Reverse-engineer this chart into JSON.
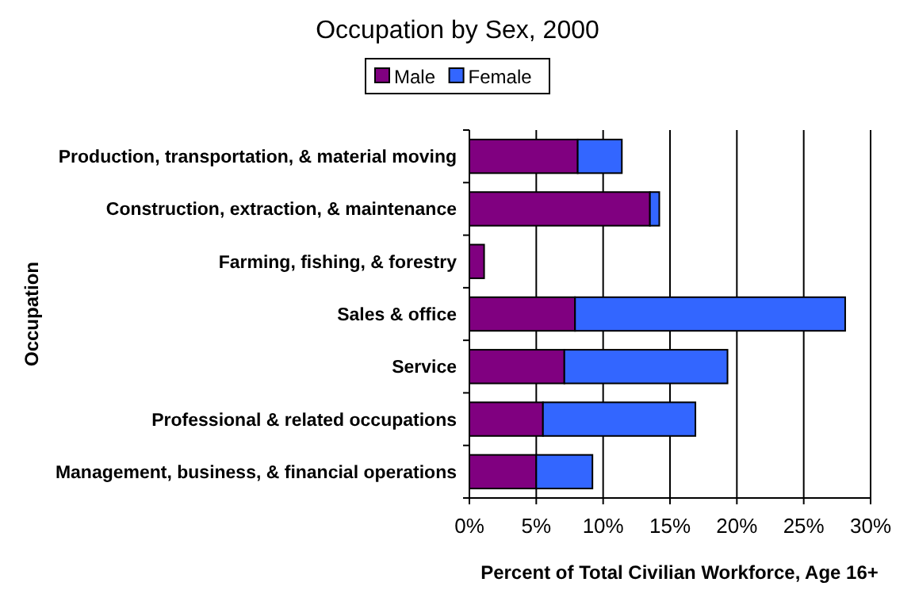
{
  "chart_data": {
    "type": "bar",
    "orientation": "horizontal",
    "stacked": true,
    "title": "Occupation by Sex, 2000",
    "xlabel": "Percent of Total Civilian Workforce, Age 16+",
    "ylabel": "Occupation",
    "categories": [
      "Production, transportation, & material moving",
      "Construction, extraction, & maintenance",
      "Farming, fishing, & forestry",
      "Sales & office",
      "Service",
      "Professional & related occupations",
      "Management, business, & financial operations"
    ],
    "series": [
      {
        "name": "Male",
        "color": "#800080",
        "values": [
          8.1,
          13.5,
          1.1,
          7.9,
          7.1,
          5.5,
          5.0
        ]
      },
      {
        "name": "Female",
        "color": "#3366ff",
        "values": [
          3.3,
          0.7,
          0,
          20.2,
          12.2,
          11.4,
          4.2
        ]
      }
    ],
    "xlim": [
      0,
      30
    ],
    "xticks": [
      {
        "value": 0,
        "label": "0%"
      },
      {
        "value": 5,
        "label": "5%"
      },
      {
        "value": 10,
        "label": "10%"
      },
      {
        "value": 15,
        "label": "15%"
      },
      {
        "value": 20,
        "label": "20%"
      },
      {
        "value": 25,
        "label": "25%"
      },
      {
        "value": 30,
        "label": "30%"
      }
    ],
    "grid": "x",
    "legend": "top"
  }
}
